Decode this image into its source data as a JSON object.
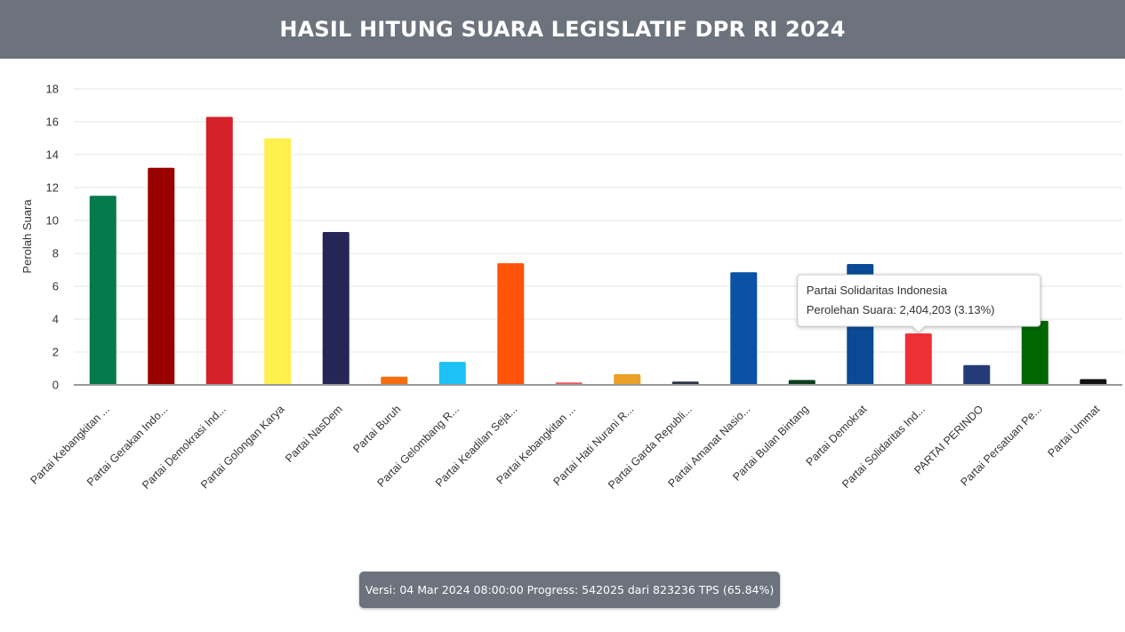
{
  "header": {
    "title": "HASIL HITUNG SUARA LEGISLATIF DPR RI 2024"
  },
  "chart_data": {
    "type": "bar",
    "ylabel": "Perolah Suara",
    "ylim": [
      0,
      18
    ],
    "yticks": [
      0,
      2,
      4,
      6,
      8,
      10,
      12,
      14,
      16,
      18
    ],
    "grid": true,
    "categories": [
      "Partai Kebangkitan ...",
      "Partai Gerakan Indo...",
      "Partai Demokrasi Ind...",
      "Partai Golongan Karya",
      "Partai NasDem",
      "Partai Buruh",
      "Partai Gelombang R...",
      "Partai Keadilan Seja...",
      "Partai Kebangkitan ...",
      "Partai Hati Nurani R...",
      "Partai Garda Republi...",
      "Partai Amanat Nasio...",
      "Partai Bulan Bintang",
      "Partai Demokrat",
      "Partai Solidaritas Ind...",
      "PARTAI PERINDO",
      "Partai Persatuan Pe...",
      "Partai Ummat"
    ],
    "values": [
      11.5,
      13.2,
      16.3,
      15.0,
      9.3,
      0.5,
      1.4,
      7.4,
      0.15,
      0.65,
      0.2,
      6.85,
      0.3,
      7.35,
      3.13,
      1.2,
      3.9,
      0.35
    ],
    "colors": [
      "#047a4b",
      "#990000",
      "#d42029",
      "#fef04d",
      "#262656",
      "#f56f0f",
      "#1ec1f4",
      "#ff5309",
      "#e9585d",
      "#eca025",
      "#2b3744",
      "#0952a5",
      "#0c3d1c",
      "#0a4a95",
      "#ee2f33",
      "#243b79",
      "#006600",
      "#111111"
    ],
    "tooltip": {
      "category_index": 14,
      "title": "Partai Solidaritas Indonesia",
      "text": "Perolehan Suara: 2,404,203 (3.13%)"
    }
  },
  "footer": {
    "text": "Versi: 04 Mar 2024 08:00:00 Progress: 542025 dari 823236 TPS (65.84%)"
  }
}
